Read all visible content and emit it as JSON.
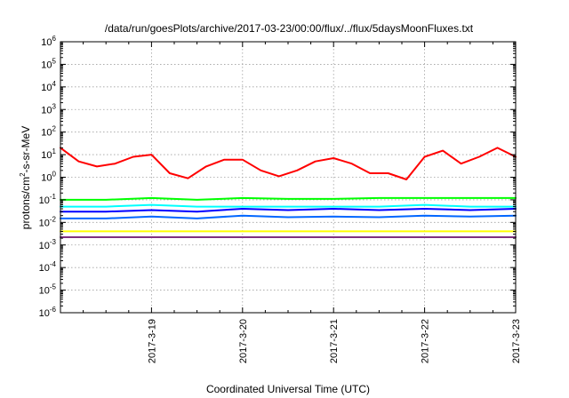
{
  "chart_data": {
    "type": "line",
    "title": "/data/run/goesPlots/archive/2017-03-23/00:00/flux/../flux/5daysMoonFluxes.txt",
    "xlabel": "Coordinated Universal Time (UTC)",
    "ylabel": "protons/cm2-s-sr-MeV",
    "y_scale": "log",
    "ylim": [
      1e-06,
      1000000.0
    ],
    "xlim": [
      "2017-03-18",
      "2017-03-23"
    ],
    "grid": true,
    "x_ticks": [
      "2017-3-19",
      "2017-3-20",
      "2017-3-21",
      "2017-3-22",
      "2017-3-23"
    ],
    "y_ticks": [
      "10-6",
      "10-5",
      "10-4",
      "10-3",
      "10-2",
      "10-1",
      "100",
      "101",
      "102",
      "103",
      "104",
      "105",
      "106"
    ],
    "series": [
      {
        "color": "#ff0000",
        "x": [
          "2017-03-18T00:00",
          "2017-03-18T04:48",
          "2017-03-18T09:36",
          "2017-03-18T14:24",
          "2017-03-18T19:12",
          "2017-03-19T00:00",
          "2017-03-19T04:48",
          "2017-03-19T09:36",
          "2017-03-19T14:24",
          "2017-03-19T19:12",
          "2017-03-20T00:00",
          "2017-03-20T04:48",
          "2017-03-20T09:36",
          "2017-03-20T14:24",
          "2017-03-20T19:12",
          "2017-03-21T00:00",
          "2017-03-21T04:48",
          "2017-03-21T09:36",
          "2017-03-21T14:24",
          "2017-03-21T19:12",
          "2017-03-22T00:00",
          "2017-03-22T04:48",
          "2017-03-22T09:36",
          "2017-03-22T14:24",
          "2017-03-22T19:12",
          "2017-03-23T00:00"
        ],
        "y": [
          20,
          5,
          3,
          4,
          8,
          10,
          1.5,
          0.9,
          3,
          6,
          6,
          2,
          1.1,
          2,
          5,
          7,
          4,
          1.5,
          1.5,
          0.8,
          8,
          15,
          4,
          8,
          20,
          8
        ]
      },
      {
        "color": "#00ff00",
        "x": [
          "2017-03-18T00:00",
          "2017-03-18T12:00",
          "2017-03-19T00:00",
          "2017-03-19T12:00",
          "2017-03-20T00:00",
          "2017-03-20T12:00",
          "2017-03-21T00:00",
          "2017-03-21T12:00",
          "2017-03-22T00:00",
          "2017-03-22T12:00",
          "2017-03-23T00:00"
        ],
        "y": [
          0.1,
          0.1,
          0.12,
          0.1,
          0.12,
          0.11,
          0.11,
          0.12,
          0.12,
          0.12,
          0.12
        ]
      },
      {
        "color": "#00ffff",
        "x": [
          "2017-03-18T00:00",
          "2017-03-18T12:00",
          "2017-03-19T00:00",
          "2017-03-19T12:00",
          "2017-03-20T00:00",
          "2017-03-20T12:00",
          "2017-03-21T00:00",
          "2017-03-21T12:00",
          "2017-03-22T00:00",
          "2017-03-22T12:00",
          "2017-03-23T00:00"
        ],
        "y": [
          0.05,
          0.05,
          0.06,
          0.05,
          0.05,
          0.05,
          0.05,
          0.05,
          0.06,
          0.05,
          0.05
        ]
      },
      {
        "color": "#0000ff",
        "x": [
          "2017-03-18T00:00",
          "2017-03-18T12:00",
          "2017-03-19T00:00",
          "2017-03-19T12:00",
          "2017-03-20T00:00",
          "2017-03-20T12:00",
          "2017-03-21T00:00",
          "2017-03-21T12:00",
          "2017-03-22T00:00",
          "2017-03-22T12:00",
          "2017-03-23T00:00"
        ],
        "y": [
          0.03,
          0.03,
          0.035,
          0.03,
          0.04,
          0.035,
          0.04,
          0.035,
          0.04,
          0.035,
          0.04
        ]
      },
      {
        "color": "#0066ff",
        "x": [
          "2017-03-18T00:00",
          "2017-03-18T12:00",
          "2017-03-19T00:00",
          "2017-03-19T12:00",
          "2017-03-20T00:00",
          "2017-03-20T12:00",
          "2017-03-21T00:00",
          "2017-03-21T12:00",
          "2017-03-22T00:00",
          "2017-03-22T12:00",
          "2017-03-23T00:00"
        ],
        "y": [
          0.015,
          0.015,
          0.018,
          0.015,
          0.02,
          0.017,
          0.018,
          0.017,
          0.02,
          0.018,
          0.02
        ]
      },
      {
        "color": "#ffff00",
        "x": [
          "2017-03-18T00:00",
          "2017-03-18T12:00",
          "2017-03-19T00:00",
          "2017-03-19T12:00",
          "2017-03-20T00:00",
          "2017-03-20T12:00",
          "2017-03-21T00:00",
          "2017-03-21T12:00",
          "2017-03-22T00:00",
          "2017-03-22T12:00",
          "2017-03-23T00:00"
        ],
        "y": [
          0.004,
          0.004,
          0.004,
          0.004,
          0.004,
          0.004,
          0.004,
          0.004,
          0.004,
          0.004,
          0.004
        ]
      },
      {
        "color": "#803080",
        "x": [
          "2017-03-18T00:00",
          "2017-03-18T12:00",
          "2017-03-19T00:00",
          "2017-03-19T12:00",
          "2017-03-20T00:00",
          "2017-03-20T12:00",
          "2017-03-21T00:00",
          "2017-03-21T12:00",
          "2017-03-22T00:00",
          "2017-03-22T12:00",
          "2017-03-23T00:00"
        ],
        "y": [
          0.0022,
          0.0022,
          0.0022,
          0.0022,
          0.0022,
          0.0022,
          0.0022,
          0.0022,
          0.0022,
          0.0022,
          0.0022
        ]
      }
    ]
  }
}
